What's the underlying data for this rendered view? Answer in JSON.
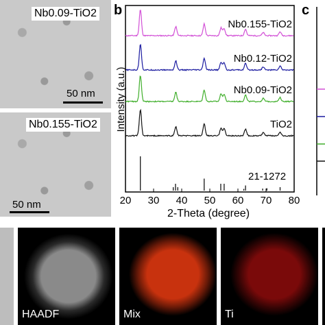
{
  "tem_a": {
    "top_label": "Nb0.09-TiO2",
    "bottom_label": "Nb0.155-TiO2",
    "top_scale": "50 nm",
    "bottom_scale": "50 nm"
  },
  "panel_b_letter": "b",
  "panel_c_letter": "c",
  "chart_data": {
    "type": "line",
    "xlabel": "2-Theta (degree)",
    "ylabel": "Intensity (a.u.)",
    "xlim": [
      20,
      80
    ],
    "xticks": [
      20,
      30,
      40,
      50,
      60,
      70,
      80
    ],
    "series": [
      {
        "name": "Nb0.155-TiO2",
        "color": "#d24fd6",
        "offset": 3
      },
      {
        "name": "Nb0.12-TiO2",
        "color": "#1a1aa0",
        "offset": 2
      },
      {
        "name": "Nb0.09-TiO2",
        "color": "#3fae2a",
        "offset": 1
      },
      {
        "name": "TiO2",
        "color": "#111111",
        "offset": 0
      }
    ],
    "peaks": [
      {
        "x": 25.3,
        "h": 1.0
      },
      {
        "x": 37.9,
        "h": 0.35
      },
      {
        "x": 48.0,
        "h": 0.45
      },
      {
        "x": 54.0,
        "h": 0.3
      },
      {
        "x": 55.1,
        "h": 0.28
      },
      {
        "x": 62.7,
        "h": 0.25
      },
      {
        "x": 69.0,
        "h": 0.12
      },
      {
        "x": 75.0,
        "h": 0.15
      }
    ],
    "reference": {
      "label": "21-1272",
      "lines": [
        {
          "x": 25.3,
          "h": 1.0
        },
        {
          "x": 37.0,
          "h": 0.1
        },
        {
          "x": 37.8,
          "h": 0.2
        },
        {
          "x": 38.6,
          "h": 0.1
        },
        {
          "x": 48.0,
          "h": 0.35
        },
        {
          "x": 53.9,
          "h": 0.2
        },
        {
          "x": 55.1,
          "h": 0.2
        },
        {
          "x": 62.1,
          "h": 0.05
        },
        {
          "x": 62.7,
          "h": 0.15
        },
        {
          "x": 68.8,
          "h": 0.06
        },
        {
          "x": 70.3,
          "h": 0.07
        },
        {
          "x": 75.0,
          "h": 0.1
        }
      ]
    }
  },
  "maps": [
    {
      "label": "HAADF",
      "color": "#d8d8d8"
    },
    {
      "label": "Mix",
      "color": "#d03010"
    },
    {
      "label": "Ti",
      "color": "#b01010"
    }
  ]
}
